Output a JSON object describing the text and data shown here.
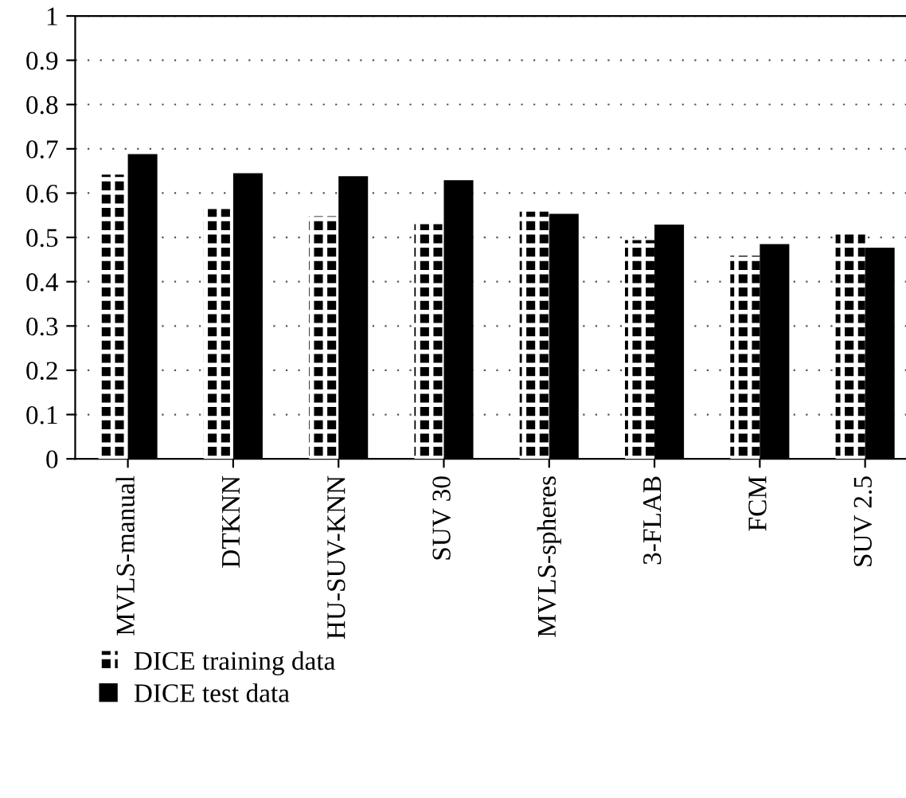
{
  "chart_data": {
    "type": "bar",
    "categories": [
      "MVLS-manual",
      "DTKNN",
      "HU-SUV-KNN",
      "SUV 30",
      "MVLS-spheres",
      "3-FLAB",
      "FCM",
      "SUV 2.5"
    ],
    "series": [
      {
        "name": "DICE training data",
        "color": "#000000",
        "values": [
          0.642,
          0.564,
          0.548,
          0.53,
          0.558,
          0.494,
          0.459,
          0.509
        ]
      },
      {
        "name": "DICE test data",
        "color": "#000000",
        "values": [
          0.688,
          0.645,
          0.638,
          0.629,
          0.553,
          0.529,
          0.485,
          0.477
        ]
      }
    ],
    "ylim": [
      0,
      1
    ],
    "yticks": [
      0,
      0.1,
      0.2,
      0.3,
      0.4,
      0.5,
      0.6,
      0.7,
      0.8,
      0.9,
      1
    ],
    "grid": "y",
    "legend": "bottom"
  }
}
